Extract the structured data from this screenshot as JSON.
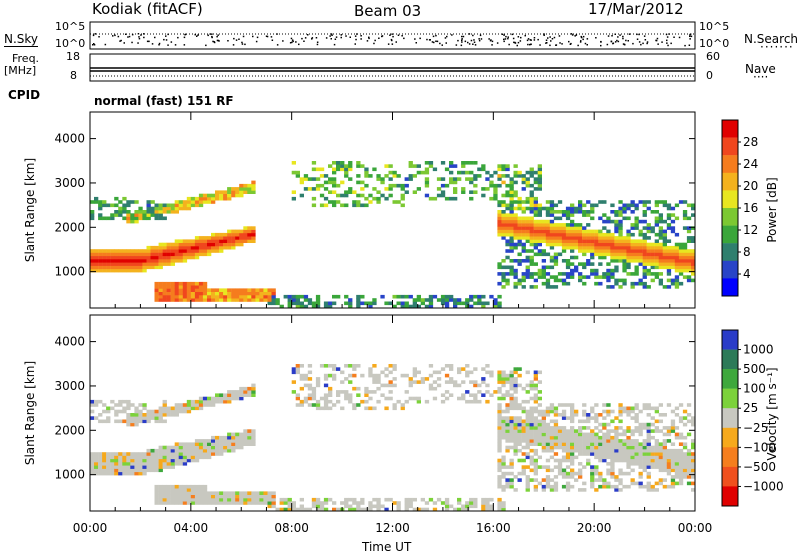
{
  "header": {
    "station": "Kodiak (fitACF)",
    "beam": "Beam 03",
    "date": "17/Mar/2012"
  },
  "strip1": {
    "left_label": "N.Sky",
    "right_label": "N.Search",
    "left_ticks": [
      "10^5",
      "10^0"
    ],
    "right_ticks": [
      "10^5",
      "10^0"
    ]
  },
  "strip2": {
    "left_label_top": "Freq.",
    "left_label_unit": "[MHz]",
    "right_label": "Nave",
    "left_ticks": [
      "18",
      "8"
    ],
    "right_ticks": [
      "60",
      "0"
    ]
  },
  "cpid": {
    "label": "CPID",
    "value": "normal (fast) 151 RF"
  },
  "chart_data": [
    {
      "type": "heatmap",
      "name": "power",
      "ylabel": "Slant Range [km]",
      "xlabel": "Time UT",
      "x_ticks": [
        "00:00",
        "04:00",
        "08:00",
        "12:00",
        "16:00",
        "20:00",
        "00:00"
      ],
      "x_hours": [
        0,
        24
      ],
      "y_ticks": [
        1000,
        2000,
        3000,
        4000
      ],
      "ylim": [
        180,
        4600
      ],
      "colorbar": {
        "label": "Power [dB]",
        "ticks": [
          4,
          8,
          12,
          16,
          20,
          24,
          28
        ],
        "range": [
          0,
          32
        ],
        "colors": [
          "#0000ff",
          "#2844c8",
          "#2f7f6e",
          "#3aa63a",
          "#7cc832",
          "#e8e620",
          "#f4b21e",
          "#f57c1e",
          "#f0461e",
          "#e00000"
        ]
      }
    },
    {
      "type": "heatmap",
      "name": "velocity",
      "ylabel": "Slant Range [km]",
      "xlabel": "Time UT",
      "x_ticks": [
        "00:00",
        "04:00",
        "08:00",
        "12:00",
        "16:00",
        "20:00",
        "00:00"
      ],
      "x_hours": [
        0,
        24
      ],
      "y_ticks": [
        1000,
        2000,
        3000,
        4000
      ],
      "ylim": [
        180,
        4600
      ],
      "colorbar": {
        "label": "Velocity [m s⁻¹]",
        "ticks": [
          "1000",
          "500",
          "100",
          "25",
          "−25",
          "−100",
          "−500",
          "−1000"
        ],
        "colors": [
          "#2a3cc8",
          "#2c7a58",
          "#3ea83c",
          "#7cd23a",
          "#c8c8c0",
          "#f6a91c",
          "#f57e1e",
          "#f0501e",
          "#e00000"
        ]
      }
    }
  ]
}
